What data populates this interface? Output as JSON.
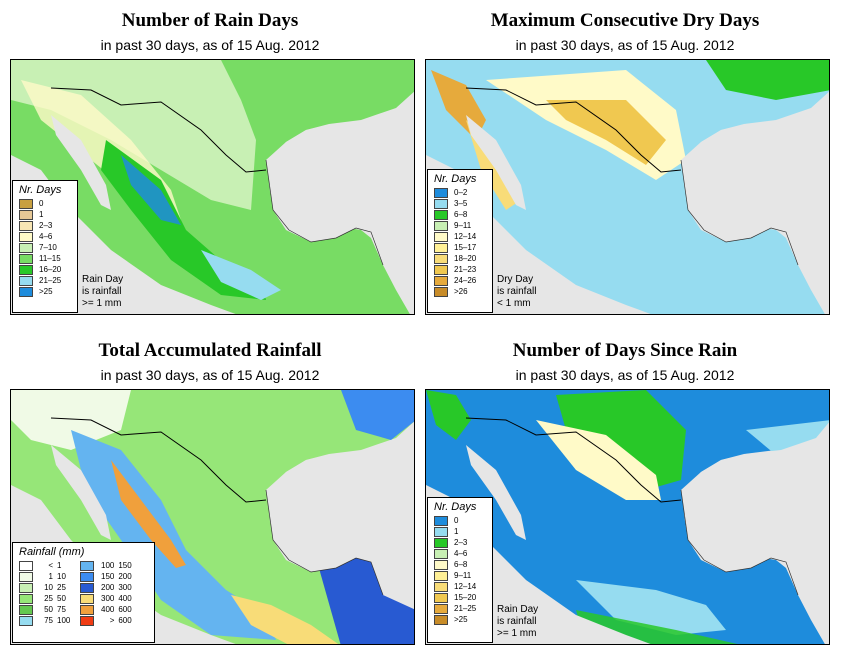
{
  "panels": [
    {
      "title": "Number of Rain Days",
      "subtitle": "in past 30 days, as of  15 Aug. 2012",
      "legend_title": "Nr. Days",
      "legend": [
        {
          "label": "0",
          "color": "#c8a040"
        },
        {
          "label": "1",
          "color": "#e6c896"
        },
        {
          "label": "2–3",
          "color": "#f8e6b4"
        },
        {
          "label": "4–6",
          "color": "#fffac8"
        },
        {
          "label": "7–10",
          "color": "#c8f0b4"
        },
        {
          "label": "11–15",
          "color": "#78dc64"
        },
        {
          "label": "16–20",
          "color": "#28c828"
        },
        {
          "label": "21–25",
          "color": "#96dcf0"
        },
        {
          "label": ">25",
          "color": "#1e8cdc"
        }
      ],
      "note": [
        "Rain Day",
        "is rainfall",
        ">= 1 mm"
      ]
    },
    {
      "title": "Maximum Consecutive Dry Days",
      "subtitle": "in past 30 days, as of  15 Aug. 2012",
      "legend_title": "Nr. Days",
      "legend": [
        {
          "label": "0–2",
          "color": "#1e8cdc"
        },
        {
          "label": "3–5",
          "color": "#96dcf0"
        },
        {
          "label": "6–8",
          "color": "#28c828"
        },
        {
          "label": "9–11",
          "color": "#c8f0b4"
        },
        {
          "label": "12–14",
          "color": "#fffac8"
        },
        {
          "label": "15–17",
          "color": "#fff096"
        },
        {
          "label": "18–20",
          "color": "#f8dc78"
        },
        {
          "label": "21–23",
          "color": "#f0c850"
        },
        {
          "label": "24–26",
          "color": "#e6aa3c"
        },
        {
          "label": ">26",
          "color": "#c88c28"
        }
      ],
      "note": [
        "Dry Day",
        "is rainfall",
        "< 1 mm"
      ]
    },
    {
      "title": "Total Accumulated Rainfall",
      "subtitle": "in past 30 days, as of  15 Aug. 2012",
      "legend_title": "Rainfall (mm)",
      "legend_left": [
        {
          "lo": "<",
          "hi": "1",
          "color": "#ffffff"
        },
        {
          "lo": "1",
          "hi": "10",
          "color": "#f0fae6"
        },
        {
          "lo": "10",
          "hi": "25",
          "color": "#c8f0b4"
        },
        {
          "lo": "25",
          "hi": "50",
          "color": "#96e678"
        },
        {
          "lo": "50",
          "hi": "75",
          "color": "#64c850"
        },
        {
          "lo": "75",
          "hi": "100",
          "color": "#96dcf0"
        }
      ],
      "legend_right": [
        {
          "lo": "100",
          "hi": "150",
          "color": "#64b4f0"
        },
        {
          "lo": "150",
          "hi": "200",
          "color": "#3c8cf0"
        },
        {
          "lo": "200",
          "hi": "300",
          "color": "#285ad2"
        },
        {
          "lo": "300",
          "hi": "400",
          "color": "#f8dc78"
        },
        {
          "lo": "400",
          "hi": "600",
          "color": "#f0a03c"
        },
        {
          "lo": ">",
          "hi": "600",
          "color": "#f03c14"
        }
      ]
    },
    {
      "title": "Number of Days Since Rain",
      "subtitle": "in past 30 days, as of  15 Aug. 2012",
      "legend_title": "Nr. Days",
      "legend": [
        {
          "label": "0",
          "color": "#1e8cdc"
        },
        {
          "label": "1",
          "color": "#96dcf0"
        },
        {
          "label": "2–3",
          "color": "#28c828"
        },
        {
          "label": "4–6",
          "color": "#c8f0b4"
        },
        {
          "label": "6–8",
          "color": "#fffac8"
        },
        {
          "label": "9–11",
          "color": "#fff096"
        },
        {
          "label": "12–14",
          "color": "#f8dc78"
        },
        {
          "label": "15–20",
          "color": "#f0c850"
        },
        {
          "label": "21–25",
          "color": "#e6aa3c"
        },
        {
          "label": ">25",
          "color": "#c88c28"
        }
      ],
      "note": [
        "Rain Day",
        "is rainfall",
        ">= 1 mm"
      ]
    }
  ]
}
